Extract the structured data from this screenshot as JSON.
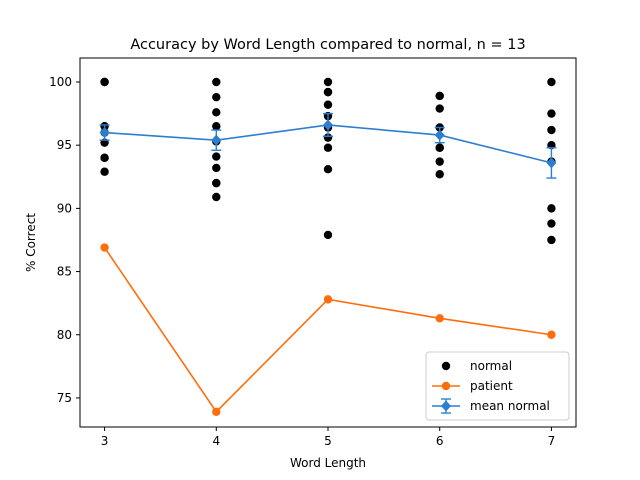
{
  "chart_data": {
    "type": "scatter",
    "title": "Accuracy by Word Length compared to normal, n = 13",
    "xlabel": "Word Length",
    "ylabel": "% Correct",
    "xlim": [
      2.78,
      7.22
    ],
    "ylim": [
      72.7,
      101.9
    ],
    "xticks": [
      3,
      4,
      5,
      6,
      7
    ],
    "yticks": [
      75,
      80,
      85,
      90,
      95,
      100
    ],
    "grid": false,
    "legend_position": "lower-right",
    "series": [
      {
        "name": "normal",
        "kind": "scatter",
        "color": "#000000",
        "points": [
          [
            3,
            100
          ],
          [
            3,
            100
          ],
          [
            3,
            96.5
          ],
          [
            3,
            96
          ],
          [
            3,
            95.2
          ],
          [
            3,
            94
          ],
          [
            3,
            94
          ],
          [
            3,
            92.9
          ],
          [
            4,
            100
          ],
          [
            4,
            98.8
          ],
          [
            4,
            97.6
          ],
          [
            4,
            96.5
          ],
          [
            4,
            95.3
          ],
          [
            4,
            94.1
          ],
          [
            4,
            93.2
          ],
          [
            4,
            92
          ],
          [
            4,
            92
          ],
          [
            4,
            90.9
          ],
          [
            5,
            100
          ],
          [
            5,
            99.2
          ],
          [
            5,
            99.2
          ],
          [
            5,
            98.2
          ],
          [
            5,
            97.3
          ],
          [
            5,
            96.4
          ],
          [
            5,
            95.6
          ],
          [
            5,
            94.8
          ],
          [
            5,
            93.1
          ],
          [
            5,
            87.9
          ],
          [
            6,
            98.9
          ],
          [
            6,
            98.9
          ],
          [
            6,
            97.9
          ],
          [
            6,
            96.4
          ],
          [
            6,
            94.8
          ],
          [
            6,
            94.8
          ],
          [
            6,
            93.7
          ],
          [
            6,
            92.7
          ],
          [
            7,
            100
          ],
          [
            7,
            97.5
          ],
          [
            7,
            96.2
          ],
          [
            7,
            95
          ],
          [
            7,
            93.7
          ],
          [
            7,
            90
          ],
          [
            7,
            88.8
          ],
          [
            7,
            87.5
          ]
        ]
      },
      {
        "name": "patient",
        "kind": "line-marker",
        "color": "#ff6d0c",
        "x": [
          3,
          4,
          5,
          6,
          7
        ],
        "y": [
          86.9,
          73.9,
          82.8,
          81.3,
          80
        ]
      },
      {
        "name": "mean normal",
        "kind": "errorbar",
        "color": "#2c7fd0",
        "x": [
          3,
          4,
          5,
          6,
          7
        ],
        "y": [
          96,
          95.4,
          96.6,
          95.8,
          93.6
        ],
        "err": [
          0.6,
          0.8,
          0.9,
          0.6,
          1.2
        ]
      }
    ]
  }
}
